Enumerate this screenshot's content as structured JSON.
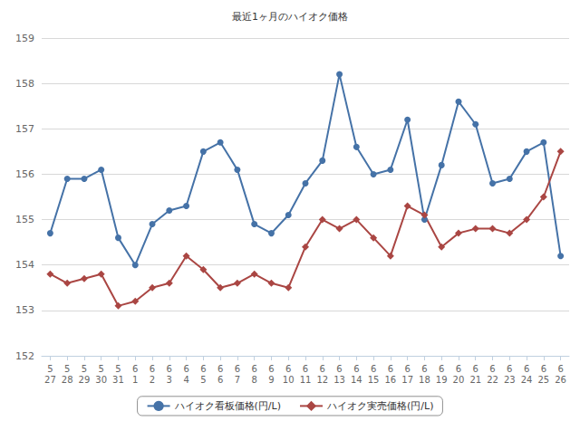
{
  "chart_data": {
    "type": "line",
    "title": "最近1ヶ月のハイオク価格",
    "categories": [
      "5\n27",
      "5\n28",
      "5\n29",
      "5\n30",
      "5\n31",
      "6\n1",
      "6\n2",
      "6\n3",
      "6\n4",
      "6\n5",
      "6\n6",
      "6\n7",
      "6\n8",
      "6\n9",
      "6\n10",
      "6\n11",
      "6\n12",
      "6\n13",
      "6\n14",
      "6\n15",
      "6\n16",
      "6\n17",
      "6\n18",
      "6\n19",
      "6\n20",
      "6\n21",
      "6\n22",
      "6\n23",
      "6\n24",
      "6\n25",
      "6\n26"
    ],
    "series": [
      {
        "name": "ハイオク看板価格(円/L)",
        "color": "#4572a7",
        "marker": "circle",
        "values": [
          154.7,
          155.9,
          155.9,
          156.1,
          154.6,
          154.0,
          154.9,
          155.2,
          155.3,
          156.5,
          156.7,
          156.1,
          154.9,
          154.7,
          155.1,
          155.8,
          156.3,
          158.2,
          156.6,
          156.0,
          156.1,
          157.2,
          155.0,
          156.2,
          157.6,
          157.1,
          155.8,
          155.9,
          156.5,
          156.7,
          154.2
        ]
      },
      {
        "name": "ハイオク実売価格(円/L)",
        "color": "#aa4643",
        "marker": "diamond",
        "values": [
          153.8,
          153.6,
          153.7,
          153.8,
          153.1,
          153.2,
          153.5,
          153.6,
          154.2,
          153.9,
          153.5,
          153.6,
          153.8,
          153.6,
          153.5,
          154.4,
          155.0,
          154.8,
          155.0,
          154.6,
          154.2,
          155.3,
          155.1,
          154.4,
          154.7,
          154.8,
          154.8,
          154.7,
          155.0,
          155.5,
          156.5
        ]
      }
    ],
    "ylim": [
      152,
      159
    ],
    "yticks": [
      152,
      153,
      154,
      155,
      156,
      157,
      158,
      159
    ],
    "grid": true,
    "legend": "bottom"
  }
}
